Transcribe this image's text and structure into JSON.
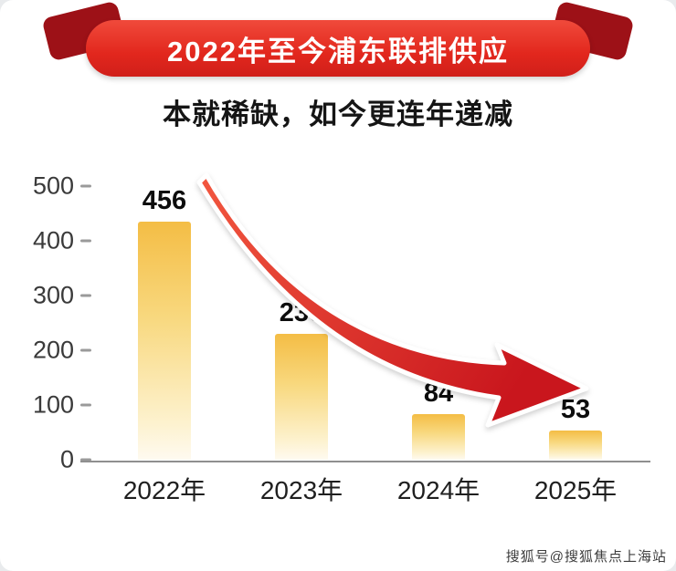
{
  "header": {
    "banner": "2022年至今浦东联排供应",
    "subtitle": "本就稀缺，如今更连年递减"
  },
  "chart_data": {
    "type": "bar",
    "title": "2022年至今浦东联排供应",
    "subtitle": "本就稀缺，如今更连年递减",
    "categories": [
      "2022年",
      "2023年",
      "2024年",
      "2025年"
    ],
    "values": [
      456,
      230,
      84,
      53
    ],
    "xlabel": "",
    "ylabel": "",
    "ylim": [
      0,
      500
    ],
    "yticks": [
      0,
      100,
      200,
      300,
      400,
      500
    ],
    "grid": false,
    "legend": false,
    "annotation": "downward-trend-arrow"
  },
  "watermark": "搜狐号@搜狐焦点上海站",
  "colors": {
    "ribbon_red": "#e2271d",
    "ribbon_red_light": "#f04a3b",
    "ribbon_dark": "#9d1117",
    "bar_top": "#f4bd45",
    "bar_mid": "#f8d87e",
    "bar_bottom": "#fefaf0",
    "arrow_light": "#f2573f",
    "arrow_dark": "#c9161d",
    "axis": "#8f8f8f"
  }
}
